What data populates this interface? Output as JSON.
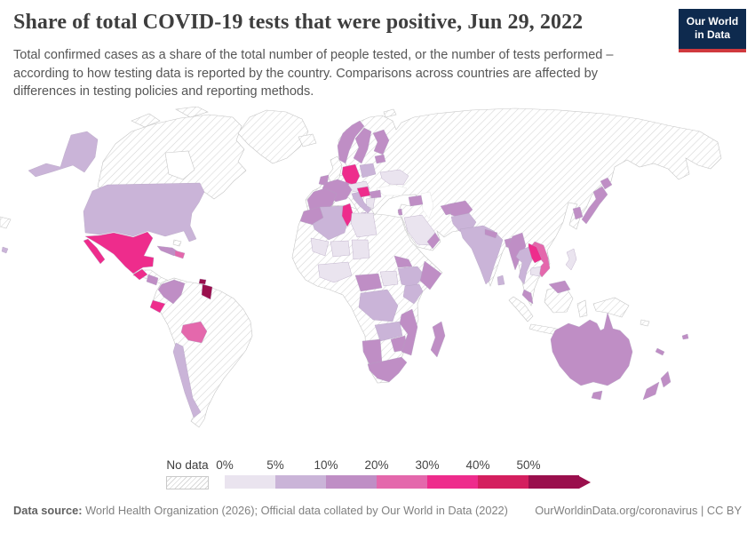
{
  "header": {
    "title": "Share of total COVID-19 tests that were positive, Jun 29, 2022",
    "subtitle": "Total confirmed cases as a share of the total number of people tested, or the number of tests performed – according to how testing data is reported by the country. Comparisons across countries are affected by differences in testing policies and reporting methods.",
    "logo": {
      "line1": "Our World",
      "line2": "in Data",
      "bg_color": "#0e2a4e",
      "accent_color": "#d0393e"
    }
  },
  "legend": {
    "no_data_label": "No data"
  },
  "footer": {
    "datasource_label": "Data source:",
    "datasource_text": " World Health Organization (2026); Official data collated by Our World in Data (2022)",
    "link": "OurWorldinData.org/coronavirus | CC BY"
  },
  "chart_data": {
    "type": "choropleth",
    "title": "Share of total COVID-19 tests that were positive",
    "date": "Jun 29, 2022",
    "unit": "share of tests positive (%)",
    "legend_position": "bottom",
    "no_data": {
      "label": "No data",
      "style": "diagonal-hatch"
    },
    "legend_bins": [
      {
        "label": "0%",
        "range": "0-5%",
        "color": "#eae4ef"
      },
      {
        "label": "5%",
        "range": "5-10%",
        "color": "#cab4d8"
      },
      {
        "label": "10%",
        "range": "10-20%",
        "color": "#bf8ec5"
      },
      {
        "label": "20%",
        "range": "20-30%",
        "color": "#e468ac"
      },
      {
        "label": "30%",
        "range": "30-40%",
        "color": "#ee2c8c"
      },
      {
        "label": "40%",
        "range": "40-50%",
        "color": "#d41f5f"
      },
      {
        "label": "50%",
        "range": ">50%",
        "color": "#9a0f4d"
      }
    ],
    "countries": {
      "United States": "5-10%",
      "Canada": "no-data",
      "Greenland": "no-data",
      "Mexico": "30-40%",
      "Guatemala": "30-40%",
      "Honduras": "no-data",
      "Nicaragua": "10-20%",
      "Costa Rica": "no-data",
      "Panama": "10-20%",
      "Cuba": "10-20%",
      "Dominican Republic": "20-30%",
      "Trinidad and Tobago": ">50%",
      "Colombia": "10-20%",
      "Venezuela": "no-data",
      "Guyana": ">50%",
      "Suriname": "no-data",
      "Ecuador": "30-40%",
      "Peru": "no-data",
      "Brazil": "no-data",
      "Bolivia": "20-30%",
      "Paraguay": "no-data",
      "Chile": "5-10%",
      "Argentina": "no-data",
      "Iceland": "no-data",
      "United Kingdom": "no-data",
      "Ireland": "10-20%",
      "Norway": "10-20%",
      "Sweden": "10-20%",
      "Finland": "10-20%",
      "Denmark": "0-5%",
      "Germany": "30-40%",
      "France": "10-20%",
      "Spain": "10-20%",
      "Portugal": "10-20%",
      "Italy": "5-10%",
      "Switzerland": "0-5%",
      "Austria": "0-5%",
      "Czechia": "0-5%",
      "Poland": "5-10%",
      "Lithuania": "10-20%",
      "Belarus": "no-data",
      "Ukraine": "0-5%",
      "Romania": "no-data",
      "Serbia": "no-data",
      "Hungary": "0-5%",
      "Croatia": "30-40%",
      "Greece": "0-5%",
      "Bulgaria": "10-20%",
      "Russia": "no-data",
      "Turkey": "no-data",
      "Azerbaijan": "10-20%",
      "Israel": "10-20%",
      "Saudi Arabia": "0-5%",
      "Yemen": "no-data",
      "Oman": "10-20%",
      "Iraq": "no-data",
      "Iran": "no-data",
      "Kazakhstan": "no-data",
      "Uzbekistan": "10-20%",
      "Afghanistan": "10-20%",
      "Pakistan": "5-10%",
      "India": "5-10%",
      "Nepal": "10-20%",
      "Bangladesh": "10-20%",
      "Sri Lanka": "5-10%",
      "Myanmar": "10-20%",
      "Thailand": "5-10%",
      "Laos": "30-40%",
      "Vietnam": "20-30%",
      "Cambodia": "0-5%",
      "Malaysia": "10-20%",
      "China": "no-data",
      "Mongolia": "no-data",
      "South Korea": "10-20%",
      "North Korea": "no-data",
      "Japan": "10-20%",
      "Philippines": "0-5%",
      "Indonesia": "no-data",
      "Papua New Guinea": "no-data",
      "Australia": "10-20%",
      "New Zealand": "10-20%",
      "Fiji": "10-20%",
      "New Caledonia": "10-20%",
      "Morocco": "10-20%",
      "Algeria": "5-10%",
      "Tunisia": "30-40%",
      "Libya": "0-5%",
      "Egypt": "no-data",
      "Mauritania": "no-data",
      "Mali": "0-5%",
      "Niger": "0-5%",
      "Chad": "0-5%",
      "Nigeria": "0-5%",
      "Ghana": "0-5%",
      "Cameroon": "10-20%",
      "Central African Republic": "10-20%",
      "Sudan": "no-data",
      "South Sudan": "0-5%",
      "Eritrea": "10-20%",
      "Ethiopia": "5-10%",
      "Somalia": "10-20%",
      "Kenya": "5-10%",
      "Democratic Republic of Congo": "5-10%",
      "Angola": "no-data",
      "Tanzania": "no-data",
      "Zambia": "5-10%",
      "Zimbabwe": "10-20%",
      "Mozambique": "10-20%",
      "Namibia": "10-20%",
      "Botswana": "no-data",
      "South Africa": "10-20%",
      "Madagascar": "10-20%"
    }
  }
}
